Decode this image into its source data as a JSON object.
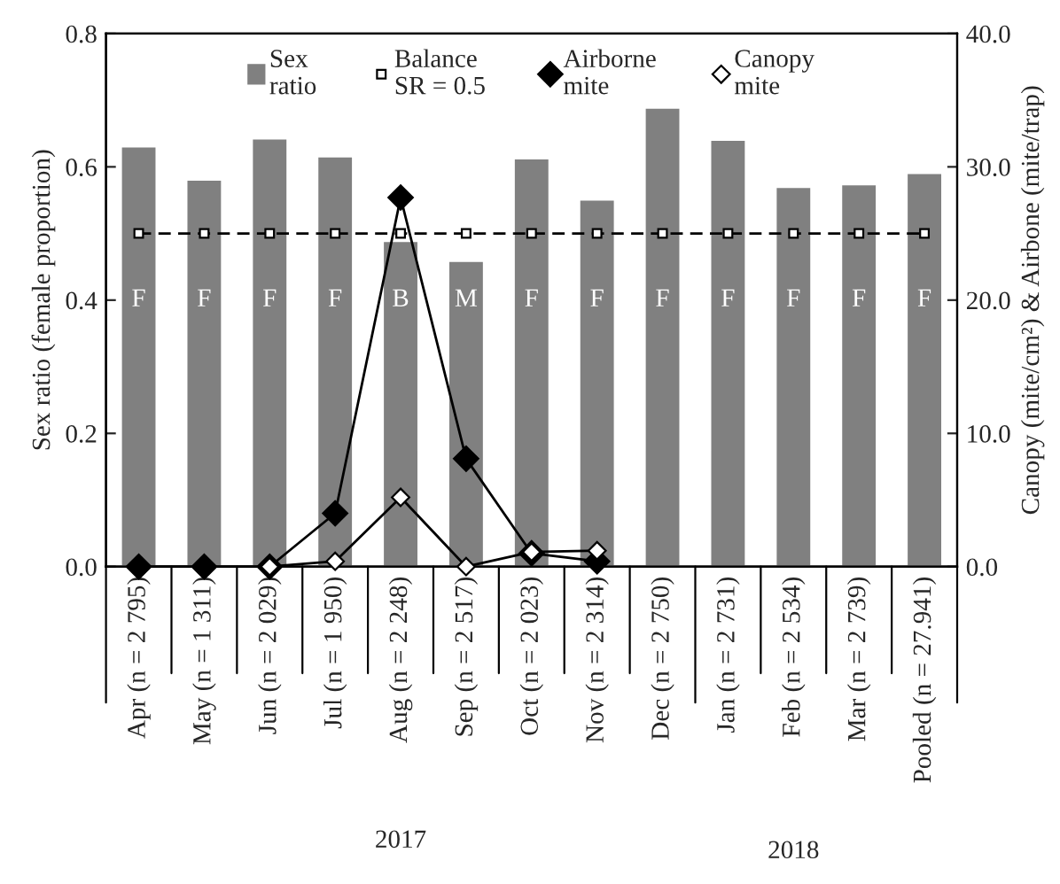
{
  "chart_data": {
    "type": "bar",
    "ylabel": "Sex ratio (female proportion)",
    "y2label": "Canopy (mite/cm²) & Airbone (mite/trap)",
    "categories": [
      "Apr (n = 2 795)",
      "May (n = 1 311)",
      "Jun (n = 2 029)",
      "Jul (n = 1 950)",
      "Aug (n = 2 248)",
      "Sep (n = 2 517)",
      "Oct (n = 2 023)",
      "Nov (n = 2 314)",
      "Dec (n = 2 750)",
      "Jan (n = 2 731)",
      "Feb (n = 2 534)",
      "Mar (n = 2 739)",
      "Pooled (n = 27.941)"
    ],
    "series": [
      {
        "name": "Sex\nratio",
        "color": "#808080",
        "values": [
          0.631,
          0.581,
          0.643,
          0.616,
          0.489,
          0.459,
          0.613,
          0.551,
          0.689,
          0.641,
          0.57,
          0.574,
          0.591
        ]
      },
      {
        "name": "Balance\nSR = 0.5",
        "type": "line",
        "color": "#000000",
        "marker": "square",
        "line_style": "dashed",
        "values": [
          0.5,
          0.5,
          0.5,
          0.5,
          0.5,
          0.5,
          0.5,
          0.5,
          0.5,
          0.5,
          0.5,
          0.5,
          0.5
        ]
      },
      {
        "name": "Airborne\nmite",
        "type": "line",
        "axis": "y2",
        "color": "#000000",
        "marker": "diamond",
        "line_style": "solid",
        "values": [
          0,
          0,
          0,
          4.0,
          27.7,
          8.1,
          1.0,
          0.4,
          null,
          null,
          null,
          null,
          null
        ]
      },
      {
        "name": "Canopy\nmite",
        "type": "line",
        "axis": "y2",
        "color": "#000000",
        "marker": "diamond",
        "line_style": "solid",
        "values": [
          null,
          null,
          0,
          0.4,
          5.2,
          0,
          1.1,
          1.2,
          null,
          null,
          null,
          null,
          null
        ]
      }
    ],
    "ylim": [
      0,
      0.8
    ],
    "yticks": [
      {
        "value": 0,
        "label": "0.0"
      },
      {
        "value": 0.2,
        "label": "0.2"
      },
      {
        "value": 0.4,
        "label": "0.4"
      },
      {
        "value": 0.6,
        "label": "0.6"
      },
      {
        "value": 0.8,
        "label": "0.8"
      }
    ],
    "y2lim": [
      0,
      40
    ],
    "y2ticks": [
      {
        "value": 0,
        "label": "0.0"
      },
      {
        "value": 10,
        "label": "10.0"
      },
      {
        "value": 20,
        "label": "20.0"
      },
      {
        "value": 30,
        "label": "30.0"
      },
      {
        "value": 40,
        "label": "40.0"
      }
    ],
    "annotations": [
      "F",
      "F",
      "F",
      "F",
      "B",
      "M",
      "F",
      "F",
      "F",
      "F",
      "F",
      "F",
      "F",
      "2017",
      "2018"
    ],
    "legend": "top",
    "grid": false
  }
}
